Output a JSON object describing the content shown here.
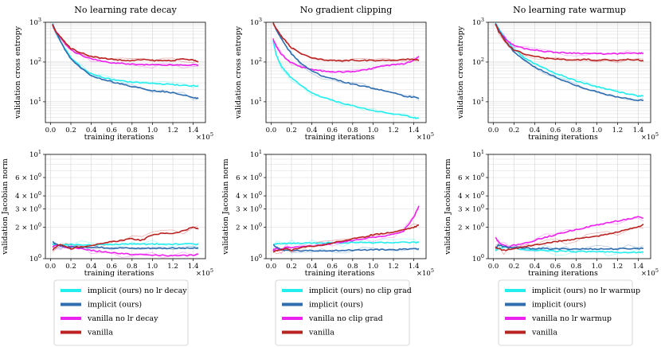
{
  "colors": {
    "implicit_lr": "#22eeee",
    "implicit": "#2e6db0",
    "vanilla_lr": "#ee22ee",
    "vanilla": "#bb2222",
    "grid": "#d9d9d9"
  },
  "x_axis": {
    "label": "training iterations",
    "multiplier": "×10",
    "exponent": "5",
    "ticks": [
      "0.0",
      "0.2",
      "0.4",
      "0.6",
      "0.8",
      "1.0",
      "1.2",
      "1.4"
    ]
  },
  "legends": [
    [
      "implicit (ours) no lr decay",
      "implicit (ours)",
      "vanilla no lr decay",
      "vanilla"
    ],
    [
      "implicit (ours) no clip grad",
      "implicit (ours)",
      "vanilla no clip grad",
      "vanilla"
    ],
    [
      "implicit (ours) no lr warmup",
      "implicit (ours)",
      "vanilla no lr warmup",
      "vanilla"
    ]
  ],
  "chart_data": [
    {
      "type": "line",
      "panel": "top-1",
      "title": "No learning rate decay",
      "xlabel": "training iterations",
      "ylabel": "validation cross entropy",
      "yscale": "log",
      "ylim": [
        3,
        1000
      ],
      "xlim": [
        -0.05,
        1.52
      ],
      "y_ticks": [
        {
          "base": "10",
          "exp": "3"
        },
        {
          "base": "10",
          "exp": "2"
        },
        {
          "base": "10",
          "exp": "1"
        }
      ],
      "x": [
        0.02,
        0.05,
        0.1,
        0.15,
        0.2,
        0.3,
        0.4,
        0.5,
        0.6,
        0.7,
        0.8,
        0.9,
        1.0,
        1.1,
        1.2,
        1.3,
        1.4,
        1.45
      ],
      "series": [
        {
          "name": "implicit (ours) no lr decay",
          "color_key": "implicit_lr",
          "values": [
            900,
            600,
            320,
            200,
            130,
            75,
            50,
            42,
            36,
            33,
            31,
            30,
            29,
            28,
            27,
            26,
            25,
            25
          ]
        },
        {
          "name": "implicit (ours)",
          "color_key": "implicit",
          "values": [
            900,
            600,
            320,
            190,
            120,
            70,
            45,
            38,
            32,
            28,
            24,
            22,
            19,
            18,
            17,
            15,
            13,
            12
          ]
        },
        {
          "name": "vanilla no lr decay",
          "color_key": "vanilla_lr",
          "values": [
            850,
            600,
            420,
            280,
            200,
            150,
            120,
            105,
            95,
            92,
            88,
            86,
            85,
            84,
            84,
            84,
            85,
            85
          ]
        },
        {
          "name": "vanilla",
          "color_key": "vanilla",
          "values": [
            850,
            580,
            420,
            300,
            220,
            170,
            140,
            125,
            118,
            110,
            108,
            115,
            110,
            108,
            110,
            118,
            112,
            100
          ]
        }
      ]
    },
    {
      "type": "line",
      "panel": "top-2",
      "title": "No gradient clipping",
      "xlabel": "training iterations",
      "ylabel": "validation cross entropy",
      "yscale": "log",
      "ylim": [
        3,
        1000
      ],
      "xlim": [
        -0.05,
        1.52
      ],
      "y_ticks": [
        {
          "base": "10",
          "exp": "3"
        },
        {
          "base": "10",
          "exp": "2"
        },
        {
          "base": "10",
          "exp": "1"
        }
      ],
      "x": [
        0.02,
        0.05,
        0.1,
        0.15,
        0.2,
        0.3,
        0.4,
        0.5,
        0.6,
        0.7,
        0.8,
        0.9,
        1.0,
        1.1,
        1.2,
        1.3,
        1.4,
        1.45
      ],
      "series": [
        {
          "name": "implicit (ours) no clip grad",
          "color_key": "implicit_lr",
          "values": [
            350,
            150,
            80,
            55,
            40,
            25,
            17,
            13,
            11,
            9,
            8,
            7,
            6,
            5.5,
            5,
            4.5,
            4,
            3.8
          ]
        },
        {
          "name": "implicit (ours)",
          "color_key": "implicit",
          "values": [
            950,
            650,
            380,
            240,
            160,
            90,
            60,
            45,
            38,
            32,
            28,
            25,
            22,
            19,
            17,
            14,
            13,
            12
          ]
        },
        {
          "name": "vanilla no clip grad",
          "color_key": "vanilla_lr",
          "values": [
            380,
            250,
            160,
            120,
            95,
            75,
            65,
            60,
            58,
            56,
            58,
            62,
            70,
            80,
            85,
            90,
            110,
            140
          ]
        },
        {
          "name": "vanilla",
          "color_key": "vanilla",
          "values": [
            950,
            700,
            450,
            320,
            230,
            160,
            125,
            115,
            110,
            108,
            112,
            110,
            108,
            110,
            112,
            115,
            118,
            110
          ]
        }
      ]
    },
    {
      "type": "line",
      "panel": "top-3",
      "title": "No learning rate warmup",
      "xlabel": "training iterations",
      "ylabel": "validation cross entropy",
      "yscale": "log",
      "ylim": [
        3,
        1000
      ],
      "xlim": [
        -0.05,
        1.52
      ],
      "y_ticks": [
        {
          "base": "10",
          "exp": "3"
        },
        {
          "base": "10",
          "exp": "2"
        },
        {
          "base": "10",
          "exp": "1"
        }
      ],
      "x": [
        0.02,
        0.05,
        0.1,
        0.15,
        0.2,
        0.3,
        0.4,
        0.5,
        0.6,
        0.7,
        0.8,
        0.9,
        1.0,
        1.1,
        1.2,
        1.3,
        1.4,
        1.45
      ],
      "series": [
        {
          "name": "implicit (ours) no lr warmup",
          "color_key": "implicit_lr",
          "values": [
            950,
            700,
            450,
            300,
            210,
            130,
            90,
            68,
            52,
            42,
            34,
            28,
            24,
            21,
            18,
            16,
            14,
            14
          ]
        },
        {
          "name": "implicit (ours)",
          "color_key": "implicit",
          "values": [
            950,
            650,
            400,
            260,
            180,
            110,
            75,
            55,
            42,
            32,
            26,
            21,
            18,
            15,
            13,
            12,
            11,
            11
          ]
        },
        {
          "name": "vanilla no lr warmup",
          "color_key": "vanilla_lr",
          "values": [
            900,
            620,
            430,
            320,
            260,
            220,
            200,
            185,
            175,
            170,
            168,
            165,
            162,
            160,
            162,
            165,
            168,
            165
          ]
        },
        {
          "name": "vanilla",
          "color_key": "vanilla",
          "values": [
            900,
            600,
            380,
            260,
            200,
            160,
            140,
            125,
            120,
            115,
            112,
            118,
            110,
            115,
            108,
            118,
            112,
            105
          ]
        }
      ]
    },
    {
      "type": "line",
      "panel": "bottom-1",
      "title": "",
      "xlabel": "training iterations",
      "ylabel": "validation Jacobian norm",
      "yscale": "log",
      "ylim": [
        1,
        10
      ],
      "xlim": [
        -0.05,
        1.52
      ],
      "y_ticks": [
        {
          "base": "10",
          "exp": "1"
        },
        {
          "base": "6 × 10",
          "exp": "0"
        },
        {
          "base": "4 × 10",
          "exp": "0"
        },
        {
          "base": "3 × 10",
          "exp": "0"
        },
        {
          "base": "2 × 10",
          "exp": "0"
        },
        {
          "base": "10",
          "exp": "0"
        }
      ],
      "x": [
        0.02,
        0.05,
        0.1,
        0.15,
        0.2,
        0.3,
        0.4,
        0.5,
        0.6,
        0.7,
        0.8,
        0.9,
        1.0,
        1.1,
        1.2,
        1.3,
        1.4,
        1.45
      ],
      "series": [
        {
          "name": "implicit (ours) no lr decay",
          "color_key": "implicit_lr",
          "values": [
            1.38,
            1.36,
            1.35,
            1.36,
            1.37,
            1.36,
            1.35,
            1.36,
            1.37,
            1.38,
            1.38,
            1.37,
            1.38,
            1.38,
            1.38,
            1.38,
            1.38,
            1.38
          ]
        },
        {
          "name": "implicit (ours)",
          "color_key": "implicit",
          "values": [
            1.45,
            1.38,
            1.32,
            1.3,
            1.3,
            1.29,
            1.28,
            1.28,
            1.27,
            1.27,
            1.26,
            1.26,
            1.26,
            1.26,
            1.26,
            1.26,
            1.26,
            1.26
          ]
        },
        {
          "name": "vanilla no lr decay",
          "color_key": "vanilla_lr",
          "values": [
            1.3,
            1.35,
            1.32,
            1.28,
            1.3,
            1.25,
            1.2,
            1.17,
            1.14,
            1.12,
            1.1,
            1.09,
            1.08,
            1.08,
            1.07,
            1.07,
            1.08,
            1.1
          ]
        },
        {
          "name": "vanilla",
          "color_key": "vanilla",
          "values": [
            1.2,
            1.3,
            1.38,
            1.3,
            1.25,
            1.3,
            1.35,
            1.38,
            1.45,
            1.5,
            1.55,
            1.5,
            1.7,
            1.75,
            1.75,
            1.85,
            2.0,
            1.92
          ]
        }
      ]
    },
    {
      "type": "line",
      "panel": "bottom-2",
      "title": "",
      "xlabel": "training iterations",
      "ylabel": "validation Jacobian norm",
      "yscale": "log",
      "ylim": [
        1,
        10
      ],
      "xlim": [
        -0.05,
        1.52
      ],
      "y_ticks": [
        {
          "base": "10",
          "exp": "1"
        },
        {
          "base": "6 × 10",
          "exp": "0"
        },
        {
          "base": "4 × 10",
          "exp": "0"
        },
        {
          "base": "3 × 10",
          "exp": "0"
        },
        {
          "base": "2 × 10",
          "exp": "0"
        },
        {
          "base": "10",
          "exp": "0"
        }
      ],
      "x": [
        0.02,
        0.05,
        0.1,
        0.15,
        0.2,
        0.3,
        0.4,
        0.5,
        0.6,
        0.7,
        0.8,
        0.9,
        1.0,
        1.1,
        1.2,
        1.3,
        1.4,
        1.45
      ],
      "series": [
        {
          "name": "implicit (ours) no clip grad",
          "color_key": "implicit_lr",
          "values": [
            1.35,
            1.38,
            1.4,
            1.4,
            1.4,
            1.41,
            1.41,
            1.42,
            1.42,
            1.42,
            1.43,
            1.43,
            1.43,
            1.43,
            1.43,
            1.43,
            1.43,
            1.43
          ]
        },
        {
          "name": "implicit (ours)",
          "color_key": "implicit",
          "values": [
            1.35,
            1.3,
            1.22,
            1.2,
            1.2,
            1.19,
            1.19,
            1.19,
            1.2,
            1.2,
            1.21,
            1.21,
            1.22,
            1.22,
            1.22,
            1.23,
            1.25,
            1.25
          ]
        },
        {
          "name": "vanilla no clip grad",
          "color_key": "vanilla_lr",
          "values": [
            1.2,
            1.25,
            1.22,
            1.3,
            1.28,
            1.3,
            1.32,
            1.35,
            1.4,
            1.45,
            1.5,
            1.55,
            1.6,
            1.65,
            1.7,
            1.85,
            2.5,
            3.2
          ]
        },
        {
          "name": "vanilla",
          "color_key": "vanilla",
          "values": [
            1.15,
            1.2,
            1.22,
            1.25,
            1.2,
            1.28,
            1.32,
            1.35,
            1.42,
            1.48,
            1.55,
            1.6,
            1.7,
            1.75,
            1.8,
            1.9,
            2.0,
            2.1
          ]
        }
      ]
    },
    {
      "type": "line",
      "panel": "bottom-3",
      "title": "",
      "xlabel": "training iterations",
      "ylabel": "validation Jacobian norm",
      "yscale": "log",
      "ylim": [
        1,
        10
      ],
      "xlim": [
        -0.05,
        1.52
      ],
      "y_ticks": [
        {
          "base": "10",
          "exp": "1"
        },
        {
          "base": "6 × 10",
          "exp": "0"
        },
        {
          "base": "4 × 10",
          "exp": "0"
        },
        {
          "base": "3 × 10",
          "exp": "0"
        },
        {
          "base": "2 × 10",
          "exp": "0"
        },
        {
          "base": "10",
          "exp": "0"
        }
      ],
      "x": [
        0.02,
        0.05,
        0.1,
        0.15,
        0.2,
        0.3,
        0.4,
        0.5,
        0.6,
        0.7,
        0.8,
        0.9,
        1.0,
        1.1,
        1.2,
        1.3,
        1.4,
        1.45
      ],
      "series": [
        {
          "name": "implicit (ours) no lr warmup",
          "color_key": "implicit_lr",
          "values": [
            1.2,
            1.25,
            1.3,
            1.28,
            1.25,
            1.22,
            1.2,
            1.2,
            1.18,
            1.18,
            1.17,
            1.17,
            1.16,
            1.16,
            1.15,
            1.15,
            1.15,
            1.15
          ]
        },
        {
          "name": "implicit (ours)",
          "color_key": "implicit",
          "values": [
            1.25,
            1.35,
            1.3,
            1.28,
            1.27,
            1.26,
            1.25,
            1.25,
            1.24,
            1.24,
            1.24,
            1.24,
            1.24,
            1.24,
            1.24,
            1.25,
            1.25,
            1.26
          ]
        },
        {
          "name": "vanilla no lr warmup",
          "color_key": "vanilla_lr",
          "values": [
            1.6,
            1.45,
            1.35,
            1.3,
            1.35,
            1.4,
            1.5,
            1.6,
            1.7,
            1.8,
            1.9,
            2.0,
            2.1,
            2.2,
            2.3,
            2.4,
            2.5,
            2.45
          ]
        },
        {
          "name": "vanilla",
          "color_key": "vanilla",
          "values": [
            1.3,
            1.25,
            1.2,
            1.22,
            1.25,
            1.3,
            1.35,
            1.4,
            1.45,
            1.5,
            1.55,
            1.6,
            1.65,
            1.7,
            1.8,
            1.9,
            2.0,
            2.15
          ]
        }
      ]
    }
  ]
}
